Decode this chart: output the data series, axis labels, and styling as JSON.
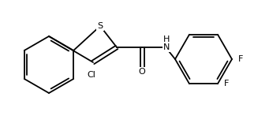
{
  "bg_color": "#ffffff",
  "figsize": [
    3.41,
    1.75
  ],
  "dpi": 100,
  "line_color": "#000000",
  "lw": 1.3,
  "atom_labels": {
    "S": {
      "text": "S",
      "color": "#000000"
    },
    "Cl": {
      "text": "Cl",
      "color": "#000000"
    },
    "O": {
      "text": "O",
      "color": "#000000"
    },
    "NH": {
      "text": "H\nN",
      "color": "#000000"
    },
    "F1": {
      "text": "F",
      "color": "#000000"
    },
    "F2": {
      "text": "F",
      "color": "#000000"
    }
  }
}
